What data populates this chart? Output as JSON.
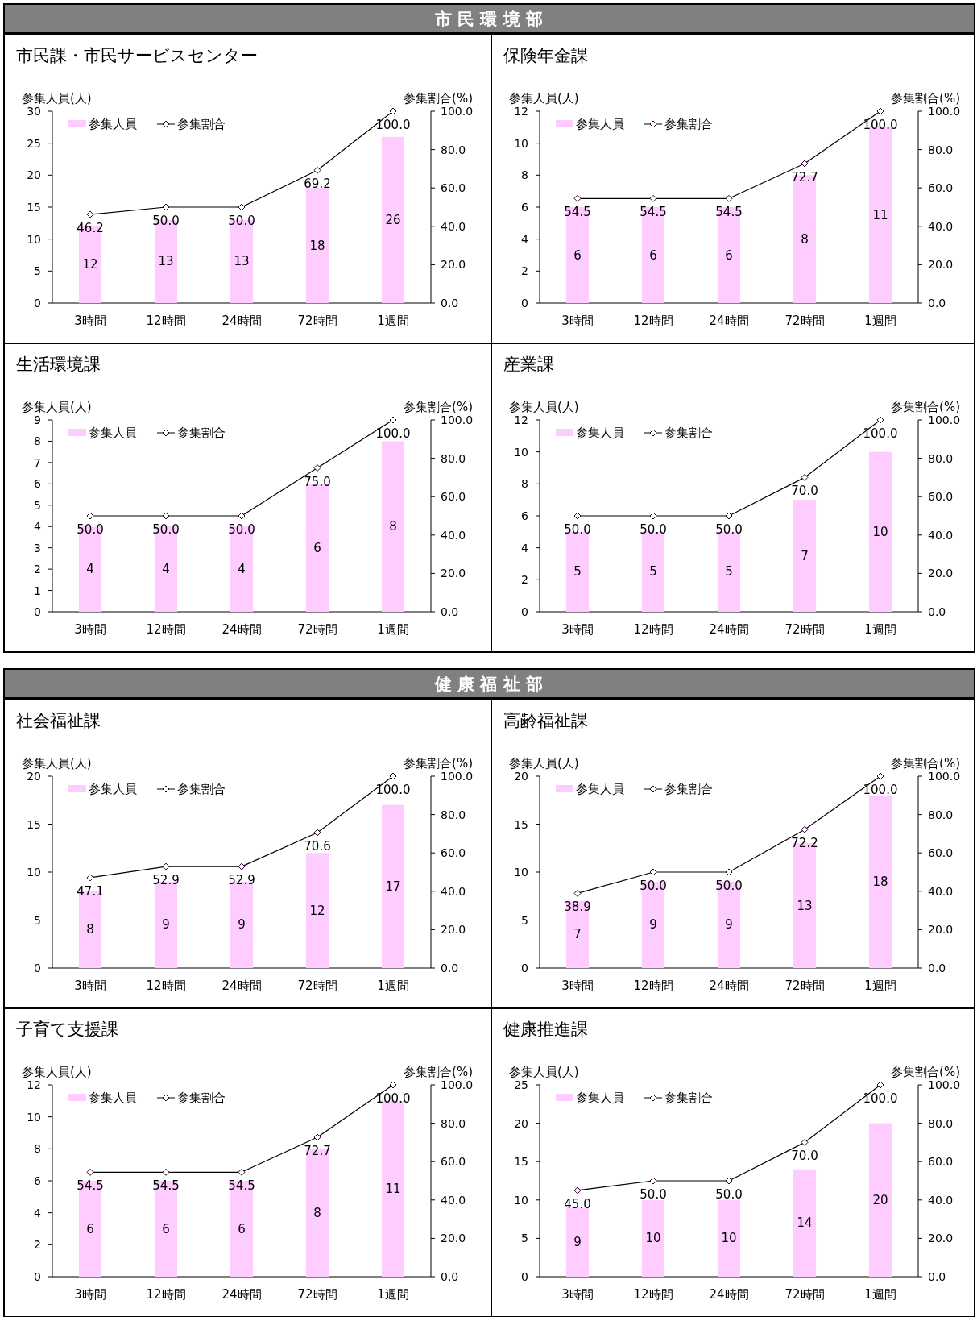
{
  "chart_data": [
    {
      "type": "bar",
      "annotations": [
        "市 民 環 境 部"
      ],
      "title": "市民課・市民サービスセンター",
      "ylabel": "参集人員(人)",
      "y2label": "参集割合(%)",
      "legend": "top left",
      "marker": "diamond",
      "categories": [
        "3時間",
        "12時間",
        "24時間",
        "72時間",
        "1週間"
      ],
      "ylim": [
        0,
        30
      ],
      "yticks": [
        0,
        5,
        10,
        15,
        20,
        25,
        30
      ],
      "y2lim": [
        0,
        100
      ],
      "y2ticks": [
        {
          "value": 0,
          "label": "0.0"
        },
        {
          "value": 20,
          "label": "20.0"
        },
        {
          "value": 40,
          "label": "40.0"
        },
        {
          "value": 60,
          "label": "60.0"
        },
        {
          "value": 80,
          "label": "80.0"
        },
        {
          "value": 100,
          "label": "100.0"
        }
      ],
      "series": [
        {
          "name": "参集人員",
          "type": "bar",
          "color": "#ffccff",
          "values": [
            12,
            13,
            13,
            18,
            26
          ],
          "value_labels": [
            "12",
            "13",
            "13",
            "18",
            "26"
          ]
        },
        {
          "name": "参集割合",
          "type": "line",
          "axis": "y2",
          "color": "#000000",
          "values": [
            46.2,
            50.0,
            50.0,
            69.2,
            100.0
          ],
          "value_labels": [
            "46.2",
            "50.0",
            "50.0",
            "69.2",
            "100.0"
          ]
        }
      ]
    },
    {
      "type": "bar",
      "title": "保険年金課",
      "ylabel": "参集人員(人)",
      "y2label": "参集割合(%)",
      "legend": "top left",
      "marker": "diamond",
      "categories": [
        "3時間",
        "12時間",
        "24時間",
        "72時間",
        "1週間"
      ],
      "ylim": [
        0,
        12
      ],
      "yticks": [
        0,
        2,
        4,
        6,
        8,
        10,
        12
      ],
      "y2lim": [
        0,
        100
      ],
      "y2ticks": [
        {
          "value": 0,
          "label": "0.0"
        },
        {
          "value": 20,
          "label": "20.0"
        },
        {
          "value": 40,
          "label": "40.0"
        },
        {
          "value": 60,
          "label": "60.0"
        },
        {
          "value": 80,
          "label": "80.0"
        },
        {
          "value": 100,
          "label": "100.0"
        }
      ],
      "series": [
        {
          "name": "参集人員",
          "type": "bar",
          "color": "#ffccff",
          "values": [
            6,
            6,
            6,
            8,
            11
          ],
          "value_labels": [
            "6",
            "6",
            "6",
            "8",
            "11"
          ]
        },
        {
          "name": "参集割合",
          "type": "line",
          "axis": "y2",
          "color": "#000000",
          "values": [
            54.5,
            54.5,
            54.5,
            72.7,
            100.0
          ],
          "value_labels": [
            "54.5",
            "54.5",
            "54.5",
            "72.7",
            "100.0"
          ]
        }
      ]
    },
    {
      "type": "bar",
      "title": "生活環境課",
      "ylabel": "参集人員(人)",
      "y2label": "参集割合(%)",
      "legend": "top left",
      "marker": "diamond",
      "categories": [
        "3時間",
        "12時間",
        "24時間",
        "72時間",
        "1週間"
      ],
      "ylim": [
        0,
        9
      ],
      "yticks": [
        0,
        1,
        2,
        3,
        4,
        5,
        6,
        7,
        8,
        9
      ],
      "y2lim": [
        0,
        100
      ],
      "y2ticks": [
        {
          "value": 0,
          "label": "0.0"
        },
        {
          "value": 20,
          "label": "20.0"
        },
        {
          "value": 40,
          "label": "40.0"
        },
        {
          "value": 60,
          "label": "60.0"
        },
        {
          "value": 80,
          "label": "80.0"
        },
        {
          "value": 100,
          "label": "100.0"
        }
      ],
      "series": [
        {
          "name": "参集人員",
          "type": "bar",
          "color": "#ffccff",
          "values": [
            4,
            4,
            4,
            6,
            8
          ],
          "value_labels": [
            "4",
            "4",
            "4",
            "6",
            "8"
          ]
        },
        {
          "name": "参集割合",
          "type": "line",
          "axis": "y2",
          "color": "#000000",
          "values": [
            50.0,
            50.0,
            50.0,
            75.0,
            100.0
          ],
          "value_labels": [
            "50.0",
            "50.0",
            "50.0",
            "75.0",
            "100.0"
          ]
        }
      ]
    },
    {
      "type": "bar",
      "title": "産業課",
      "ylabel": "参集人員(人)",
      "y2label": "参集割合(%)",
      "legend": "top left",
      "marker": "diamond",
      "categories": [
        "3時間",
        "12時間",
        "24時間",
        "72時間",
        "1週間"
      ],
      "ylim": [
        0,
        12
      ],
      "yticks": [
        0,
        2,
        4,
        6,
        8,
        10,
        12
      ],
      "y2lim": [
        0,
        100
      ],
      "y2ticks": [
        {
          "value": 0,
          "label": "0.0"
        },
        {
          "value": 20,
          "label": "20.0"
        },
        {
          "value": 40,
          "label": "40.0"
        },
        {
          "value": 60,
          "label": "60.0"
        },
        {
          "value": 80,
          "label": "80.0"
        },
        {
          "value": 100,
          "label": "100.0"
        }
      ],
      "series": [
        {
          "name": "参集人員",
          "type": "bar",
          "color": "#ffccff",
          "values": [
            5,
            5,
            5,
            7,
            10
          ],
          "value_labels": [
            "5",
            "5",
            "5",
            "7",
            "10"
          ]
        },
        {
          "name": "参集割合",
          "type": "line",
          "axis": "y2",
          "color": "#000000",
          "values": [
            50.0,
            50.0,
            50.0,
            70.0,
            100.0
          ],
          "value_labels": [
            "50.0",
            "50.0",
            "50.0",
            "70.0",
            "100.0"
          ]
        }
      ]
    },
    {
      "type": "bar",
      "annotations": [
        "健 康 福 祉 部"
      ],
      "title": "社会福祉課",
      "ylabel": "参集人員(人)",
      "y2label": "参集割合(%)",
      "legend": "top left",
      "marker": "diamond",
      "categories": [
        "3時間",
        "12時間",
        "24時間",
        "72時間",
        "1週間"
      ],
      "ylim": [
        0,
        20
      ],
      "yticks": [
        0,
        5,
        10,
        15,
        20
      ],
      "y2lim": [
        0,
        100
      ],
      "y2ticks": [
        {
          "value": 0,
          "label": "0.0"
        },
        {
          "value": 20,
          "label": "20.0"
        },
        {
          "value": 40,
          "label": "40.0"
        },
        {
          "value": 60,
          "label": "60.0"
        },
        {
          "value": 80,
          "label": "80.0"
        },
        {
          "value": 100,
          "label": "100.0"
        }
      ],
      "series": [
        {
          "name": "参集人員",
          "type": "bar",
          "color": "#ffccff",
          "values": [
            8,
            9,
            9,
            12,
            17
          ],
          "value_labels": [
            "8",
            "9",
            "9",
            "12",
            "17"
          ]
        },
        {
          "name": "参集割合",
          "type": "line",
          "axis": "y2",
          "color": "#000000",
          "values": [
            47.1,
            52.9,
            52.9,
            70.6,
            100.0
          ],
          "value_labels": [
            "47.1",
            "52.9",
            "52.9",
            "70.6",
            "100.0"
          ]
        }
      ]
    },
    {
      "type": "bar",
      "title": "高齢福祉課",
      "ylabel": "参集人員(人)",
      "y2label": "参集割合(%)",
      "legend": "top left",
      "marker": "diamond",
      "categories": [
        "3時間",
        "12時間",
        "24時間",
        "72時間",
        "1週間"
      ],
      "ylim": [
        0,
        20
      ],
      "yticks": [
        0,
        5,
        10,
        15,
        20
      ],
      "y2lim": [
        0,
        100
      ],
      "y2ticks": [
        {
          "value": 0,
          "label": "0.0"
        },
        {
          "value": 20,
          "label": "20.0"
        },
        {
          "value": 40,
          "label": "40.0"
        },
        {
          "value": 60,
          "label": "60.0"
        },
        {
          "value": 80,
          "label": "80.0"
        },
        {
          "value": 100,
          "label": "100.0"
        }
      ],
      "series": [
        {
          "name": "参集人員",
          "type": "bar",
          "color": "#ffccff",
          "values": [
            7,
            9,
            9,
            13,
            18
          ],
          "value_labels": [
            "7",
            "9",
            "9",
            "13",
            "18"
          ]
        },
        {
          "name": "参集割合",
          "type": "line",
          "axis": "y2",
          "color": "#000000",
          "values": [
            38.9,
            50.0,
            50.0,
            72.2,
            100.0
          ],
          "value_labels": [
            "38.9",
            "50.0",
            "50.0",
            "72.2",
            "100.0"
          ]
        }
      ]
    },
    {
      "type": "bar",
      "title": "子育て支援課",
      "ylabel": "参集人員(人)",
      "y2label": "参集割合(%)",
      "legend": "top left",
      "marker": "diamond",
      "categories": [
        "3時間",
        "12時間",
        "24時間",
        "72時間",
        "1週間"
      ],
      "ylim": [
        0,
        12
      ],
      "yticks": [
        0,
        2,
        4,
        6,
        8,
        10,
        12
      ],
      "y2lim": [
        0,
        100
      ],
      "y2ticks": [
        {
          "value": 0,
          "label": "0.0"
        },
        {
          "value": 20,
          "label": "20.0"
        },
        {
          "value": 40,
          "label": "40.0"
        },
        {
          "value": 60,
          "label": "60.0"
        },
        {
          "value": 80,
          "label": "80.0"
        },
        {
          "value": 100,
          "label": "100.0"
        }
      ],
      "series": [
        {
          "name": "参集人員",
          "type": "bar",
          "color": "#ffccff",
          "values": [
            6,
            6,
            6,
            8,
            11
          ],
          "value_labels": [
            "6",
            "6",
            "6",
            "8",
            "11"
          ]
        },
        {
          "name": "参集割合",
          "type": "line",
          "axis": "y2",
          "color": "#000000",
          "values": [
            54.5,
            54.5,
            54.5,
            72.7,
            100.0
          ],
          "value_labels": [
            "54.5",
            "54.5",
            "54.5",
            "72.7",
            "100.0"
          ]
        }
      ]
    },
    {
      "type": "bar",
      "title": "健康推進課",
      "ylabel": "参集人員(人)",
      "y2label": "参集割合(%)",
      "legend": "top left",
      "marker": "diamond",
      "categories": [
        "3時間",
        "12時間",
        "24時間",
        "72時間",
        "1週間"
      ],
      "ylim": [
        0,
        25
      ],
      "yticks": [
        0,
        5,
        10,
        15,
        20,
        25
      ],
      "y2lim": [
        0,
        100
      ],
      "y2ticks": [
        {
          "value": 0,
          "label": "0.0"
        },
        {
          "value": 20,
          "label": "20.0"
        },
        {
          "value": 40,
          "label": "40.0"
        },
        {
          "value": 60,
          "label": "60.0"
        },
        {
          "value": 80,
          "label": "80.0"
        },
        {
          "value": 100,
          "label": "100.0"
        }
      ],
      "series": [
        {
          "name": "参集人員",
          "type": "bar",
          "color": "#ffccff",
          "values": [
            9,
            10,
            10,
            14,
            20
          ],
          "value_labels": [
            "9",
            "10",
            "10",
            "14",
            "20"
          ]
        },
        {
          "name": "参集割合",
          "type": "line",
          "axis": "y2",
          "color": "#000000",
          "values": [
            45.0,
            50.0,
            50.0,
            70.0,
            100.0
          ],
          "value_labels": [
            "45.0",
            "50.0",
            "50.0",
            "70.0",
            "100.0"
          ]
        }
      ]
    }
  ]
}
